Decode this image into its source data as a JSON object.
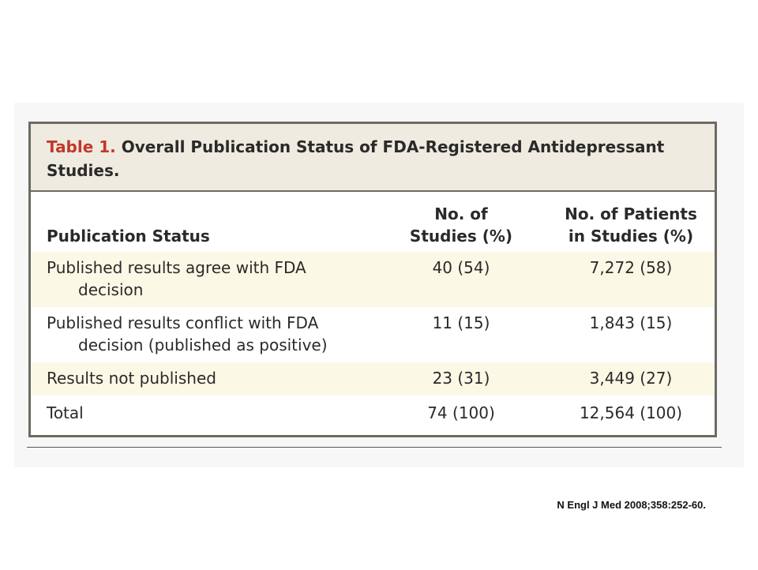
{
  "table": {
    "title_label": "Table 1.",
    "title_text": "Overall Publication Status of FDA-Registered Antidepressant Studies.",
    "headers": {
      "status": "Publication Status",
      "studies_line1": "No. of",
      "studies_line2": "Studies (%)",
      "patients_line1": "No. of Patients",
      "patients_line2": "in Studies (%)"
    },
    "rows": [
      {
        "label_line1": "Published results agree with FDA",
        "label_line2": "decision",
        "studies": "40 (54)",
        "patients": "7,272 (58)"
      },
      {
        "label_line1": "Published results conflict with FDA",
        "label_line2": "decision (published as positive)",
        "studies": "11 (15)",
        "patients": "1,843 (15)"
      },
      {
        "label_line1": "Results not published",
        "label_line2": "",
        "studies": "23 (31)",
        "patients": "3,449 (27)"
      },
      {
        "label_line1": "Total",
        "label_line2": "",
        "studies": "74 (100)",
        "patients": "12,564 (100)"
      }
    ]
  },
  "citation": "N Engl J Med 2008;358:252-60.",
  "colors": {
    "title_label": "#c0392b",
    "title_band": "#efebe0",
    "row_shade": "#fcf8e6",
    "border": "#6b6b63"
  }
}
